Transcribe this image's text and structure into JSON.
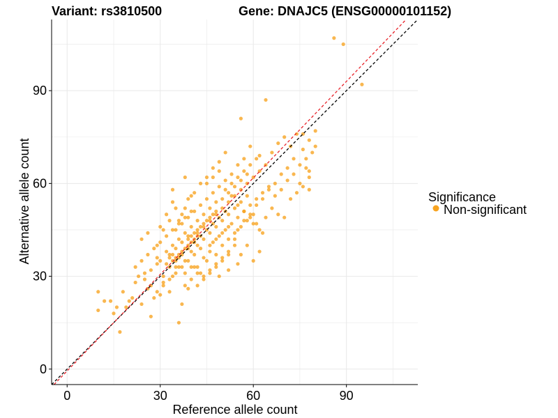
{
  "chart_data": {
    "type": "scatter",
    "title_left": "Variant: rs3810500",
    "title_right": "Gene: DNAJC5 (ENSG00000101152)",
    "xlabel": "Reference allele count",
    "ylabel": "Alternative allele count",
    "xlim": [
      -5,
      113
    ],
    "ylim": [
      -5,
      113
    ],
    "xticks": [
      0,
      30,
      60,
      90
    ],
    "yticks": [
      0,
      30,
      60,
      90
    ],
    "grid": true,
    "legend": {
      "title": "Significance",
      "position": "right",
      "entries": [
        {
          "label": "Non-significant",
          "color": "#F7A31F"
        }
      ]
    },
    "reference_lines": [
      {
        "name": "identity",
        "slope": 1,
        "intercept": 0,
        "color": "#000000",
        "dash": true
      },
      {
        "name": "fit",
        "slope": 1.04,
        "intercept": -0.6,
        "color": "#E8242B",
        "dash": true
      }
    ],
    "series": [
      {
        "name": "Non-significant",
        "color": "#F7A31F",
        "points": [
          [
            86,
            107
          ],
          [
            89,
            105
          ],
          [
            95,
            92
          ],
          [
            64,
            87
          ],
          [
            56,
            81
          ],
          [
            80,
            77
          ],
          [
            10,
            25
          ],
          [
            10,
            19
          ],
          [
            12,
            22
          ],
          [
            14,
            22
          ],
          [
            15,
            18
          ],
          [
            17,
            12
          ],
          [
            16,
            20
          ],
          [
            19,
            20
          ],
          [
            18,
            25
          ],
          [
            20,
            22
          ],
          [
            21,
            23
          ],
          [
            22,
            28
          ],
          [
            23,
            30
          ],
          [
            24,
            21
          ],
          [
            25,
            31
          ],
          [
            26,
            26
          ],
          [
            27,
            17
          ],
          [
            28,
            23
          ],
          [
            29,
            36
          ],
          [
            30,
            24
          ],
          [
            31,
            28
          ],
          [
            32,
            34
          ],
          [
            33,
            25
          ],
          [
            34,
            30
          ],
          [
            35,
            33
          ],
          [
            36,
            15
          ],
          [
            37,
            21
          ],
          [
            38,
            27
          ],
          [
            39,
            26
          ],
          [
            24,
            42
          ],
          [
            26,
            44
          ],
          [
            29,
            40
          ],
          [
            31,
            45
          ],
          [
            33,
            48
          ],
          [
            35,
            52
          ],
          [
            34,
            58
          ],
          [
            37,
            50
          ],
          [
            39,
            55
          ],
          [
            38,
            62
          ],
          [
            30,
            35
          ],
          [
            32,
            38
          ],
          [
            34,
            40
          ],
          [
            36,
            42
          ],
          [
            38,
            44
          ],
          [
            40,
            46
          ],
          [
            42,
            48
          ],
          [
            44,
            50
          ],
          [
            46,
            52
          ],
          [
            48,
            54
          ],
          [
            33,
            33
          ],
          [
            35,
            35
          ],
          [
            37,
            37
          ],
          [
            39,
            39
          ],
          [
            41,
            41
          ],
          [
            43,
            43
          ],
          [
            45,
            45
          ],
          [
            47,
            47
          ],
          [
            49,
            49
          ],
          [
            51,
            51
          ],
          [
            36,
            36
          ],
          [
            38,
            35
          ],
          [
            40,
            33
          ],
          [
            42,
            31
          ],
          [
            44,
            30
          ],
          [
            46,
            32
          ],
          [
            48,
            34
          ],
          [
            50,
            36
          ],
          [
            52,
            38
          ],
          [
            54,
            40
          ],
          [
            35,
            45
          ],
          [
            37,
            47
          ],
          [
            39,
            49
          ],
          [
            41,
            51
          ],
          [
            43,
            53
          ],
          [
            45,
            55
          ],
          [
            47,
            57
          ],
          [
            49,
            59
          ],
          [
            51,
            61
          ],
          [
            53,
            63
          ],
          [
            40,
            38
          ],
          [
            42,
            40
          ],
          [
            44,
            42
          ],
          [
            46,
            44
          ],
          [
            48,
            46
          ],
          [
            50,
            48
          ],
          [
            52,
            50
          ],
          [
            54,
            52
          ],
          [
            56,
            54
          ],
          [
            58,
            56
          ],
          [
            41,
            57
          ],
          [
            43,
            60
          ],
          [
            45,
            62
          ],
          [
            47,
            65
          ],
          [
            49,
            67
          ],
          [
            51,
            70
          ],
          [
            55,
            66
          ],
          [
            57,
            68
          ],
          [
            59,
            72
          ],
          [
            62,
            69
          ],
          [
            55,
            45
          ],
          [
            57,
            48
          ],
          [
            59,
            50
          ],
          [
            61,
            53
          ],
          [
            63,
            55
          ],
          [
            65,
            58
          ],
          [
            67,
            60
          ],
          [
            69,
            63
          ],
          [
            71,
            65
          ],
          [
            73,
            68
          ],
          [
            60,
            47
          ],
          [
            62,
            45
          ],
          [
            64,
            49
          ],
          [
            66,
            52
          ],
          [
            68,
            50
          ],
          [
            70,
            49
          ],
          [
            72,
            55
          ],
          [
            74,
            57
          ],
          [
            76,
            59
          ],
          [
            78,
            62
          ],
          [
            66,
            70
          ],
          [
            68,
            73
          ],
          [
            70,
            75
          ],
          [
            72,
            72
          ],
          [
            74,
            76
          ],
          [
            76,
            71
          ],
          [
            78,
            64
          ],
          [
            78,
            58
          ],
          [
            75,
            60
          ],
          [
            77,
            65
          ],
          [
            30,
            46
          ],
          [
            32,
            50
          ],
          [
            34,
            54
          ],
          [
            36,
            48
          ],
          [
            38,
            52
          ],
          [
            40,
            56
          ],
          [
            42,
            44
          ],
          [
            44,
            46
          ],
          [
            46,
            40
          ],
          [
            48,
            42
          ],
          [
            50,
            44
          ],
          [
            52,
            46
          ],
          [
            54,
            42
          ],
          [
            56,
            37
          ],
          [
            58,
            40
          ],
          [
            60,
            35
          ],
          [
            62,
            38
          ],
          [
            55,
            34
          ],
          [
            52,
            32
          ],
          [
            49,
            30
          ],
          [
            27,
            32
          ],
          [
            29,
            34
          ],
          [
            31,
            30
          ],
          [
            33,
            37
          ],
          [
            35,
            39
          ],
          [
            37,
            41
          ],
          [
            39,
            43
          ],
          [
            41,
            37
          ],
          [
            43,
            39
          ],
          [
            45,
            35
          ],
          [
            22,
            33
          ],
          [
            24,
            35
          ],
          [
            26,
            37
          ],
          [
            28,
            39
          ],
          [
            30,
            41
          ],
          [
            32,
            43
          ],
          [
            34,
            45
          ],
          [
            36,
            47
          ],
          [
            38,
            49
          ],
          [
            40,
            51
          ],
          [
            45,
            60
          ],
          [
            47,
            62
          ],
          [
            49,
            64
          ],
          [
            51,
            58
          ],
          [
            53,
            56
          ],
          [
            55,
            53
          ],
          [
            57,
            51
          ],
          [
            59,
            49
          ],
          [
            61,
            47
          ],
          [
            63,
            44
          ],
          [
            42,
            33
          ],
          [
            44,
            36
          ],
          [
            46,
            38
          ],
          [
            48,
            37
          ],
          [
            50,
            40
          ],
          [
            52,
            42
          ],
          [
            54,
            44
          ],
          [
            56,
            46
          ],
          [
            58,
            48
          ],
          [
            60,
            50
          ],
          [
            34,
            35
          ],
          [
            36,
            33
          ],
          [
            38,
            31
          ],
          [
            40,
            29
          ],
          [
            42,
            27
          ],
          [
            44,
            29
          ],
          [
            46,
            31
          ],
          [
            48,
            33
          ],
          [
            50,
            35
          ],
          [
            52,
            37
          ],
          [
            46,
            48
          ],
          [
            48,
            50
          ],
          [
            50,
            52
          ],
          [
            52,
            54
          ],
          [
            54,
            56
          ],
          [
            56,
            58
          ],
          [
            58,
            60
          ],
          [
            60,
            62
          ],
          [
            62,
            64
          ],
          [
            64,
            66
          ],
          [
            25,
            29
          ],
          [
            27,
            27
          ],
          [
            29,
            25
          ],
          [
            31,
            27
          ],
          [
            33,
            29
          ],
          [
            35,
            31
          ],
          [
            37,
            33
          ],
          [
            39,
            35
          ],
          [
            41,
            33
          ],
          [
            43,
            31
          ],
          [
            67,
            56
          ],
          [
            69,
            58
          ],
          [
            71,
            61
          ],
          [
            73,
            63
          ],
          [
            75,
            66
          ],
          [
            77,
            68
          ],
          [
            79,
            70
          ],
          [
            80,
            72
          ],
          [
            78,
            74
          ],
          [
            76,
            76
          ],
          [
            42,
            45
          ],
          [
            43,
            46
          ],
          [
            44,
            47
          ],
          [
            45,
            48
          ],
          [
            46,
            49
          ],
          [
            47,
            50
          ],
          [
            48,
            51
          ],
          [
            41,
            44
          ],
          [
            40,
            43
          ],
          [
            39,
            42
          ],
          [
            37,
            38
          ],
          [
            38,
            39
          ],
          [
            39,
            40
          ],
          [
            40,
            41
          ],
          [
            41,
            42
          ],
          [
            42,
            43
          ],
          [
            36,
            37
          ],
          [
            35,
            36
          ],
          [
            34,
            37
          ],
          [
            33,
            36
          ],
          [
            50,
            55
          ],
          [
            52,
            57
          ],
          [
            54,
            59
          ],
          [
            56,
            61
          ],
          [
            58,
            63
          ],
          [
            53,
            60
          ],
          [
            55,
            62
          ],
          [
            57,
            64
          ],
          [
            59,
            66
          ],
          [
            61,
            68
          ],
          [
            47,
            41
          ],
          [
            49,
            43
          ],
          [
            51,
            45
          ],
          [
            53,
            47
          ],
          [
            55,
            49
          ],
          [
            57,
            51
          ],
          [
            59,
            53
          ],
          [
            61,
            55
          ],
          [
            63,
            57
          ],
          [
            65,
            59
          ]
        ]
      }
    ]
  }
}
